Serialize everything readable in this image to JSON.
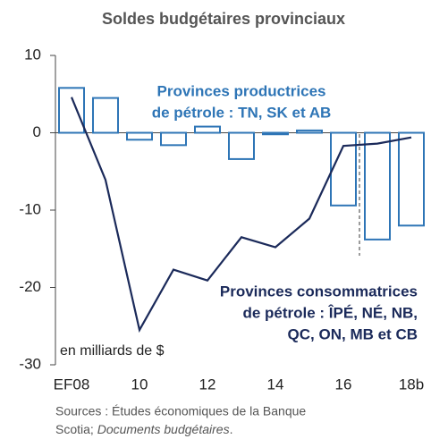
{
  "chart_data": {
    "type": "bar",
    "title": "Soldes budgétaires provinciaux",
    "categories": [
      "EF08",
      null,
      "10",
      null,
      "12",
      null,
      "14",
      null,
      "16",
      null,
      "18b"
    ],
    "series": [
      {
        "type": "bar",
        "color": "#2e75b6",
        "values": [
          5.8,
          4.5,
          -0.9,
          -1.6,
          0.8,
          -3.4,
          -0.2,
          0.3,
          -9.4,
          -13.8,
          -12.0
        ]
      },
      {
        "type": "line",
        "color": "#1b2a5a",
        "values": [
          4.6,
          -6.1,
          -25.5,
          -17.7,
          -19.1,
          -13.5,
          -14.8,
          -11.1,
          -1.7,
          -1.4,
          -0.6
        ]
      }
    ],
    "ylim": [
      -30,
      10
    ],
    "yticks": [
      10,
      0,
      -10,
      -20,
      -30
    ],
    "grid": false,
    "annotations": {
      "producers": [
        "Provinces productrices",
        "de pétrole : TN, SK et AB"
      ],
      "consumers": [
        "Provinces consommatrices",
        "de pétrole : ÎPÉ, NÉ, NB,",
        "QC, ON, MB et CB"
      ],
      "units": "en milliards de $"
    },
    "source": {
      "line1": "Sources : Études économiques de la Banque",
      "line2": "Scotia; ",
      "line2_italic": "Documents budgétaires",
      "line2_end": "."
    }
  }
}
